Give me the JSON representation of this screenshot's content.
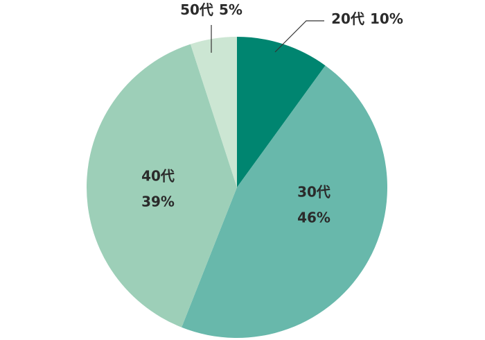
{
  "chart_data": {
    "type": "pie",
    "categories": [
      "20代",
      "30代",
      "40代",
      "50代"
    ],
    "values": [
      10,
      46,
      39,
      5
    ],
    "value_labels": [
      "10%",
      "46%",
      "39%",
      "5%"
    ],
    "colors": [
      "#008570",
      "#68b8ab",
      "#9dcfb8",
      "#cce6d3"
    ]
  }
}
